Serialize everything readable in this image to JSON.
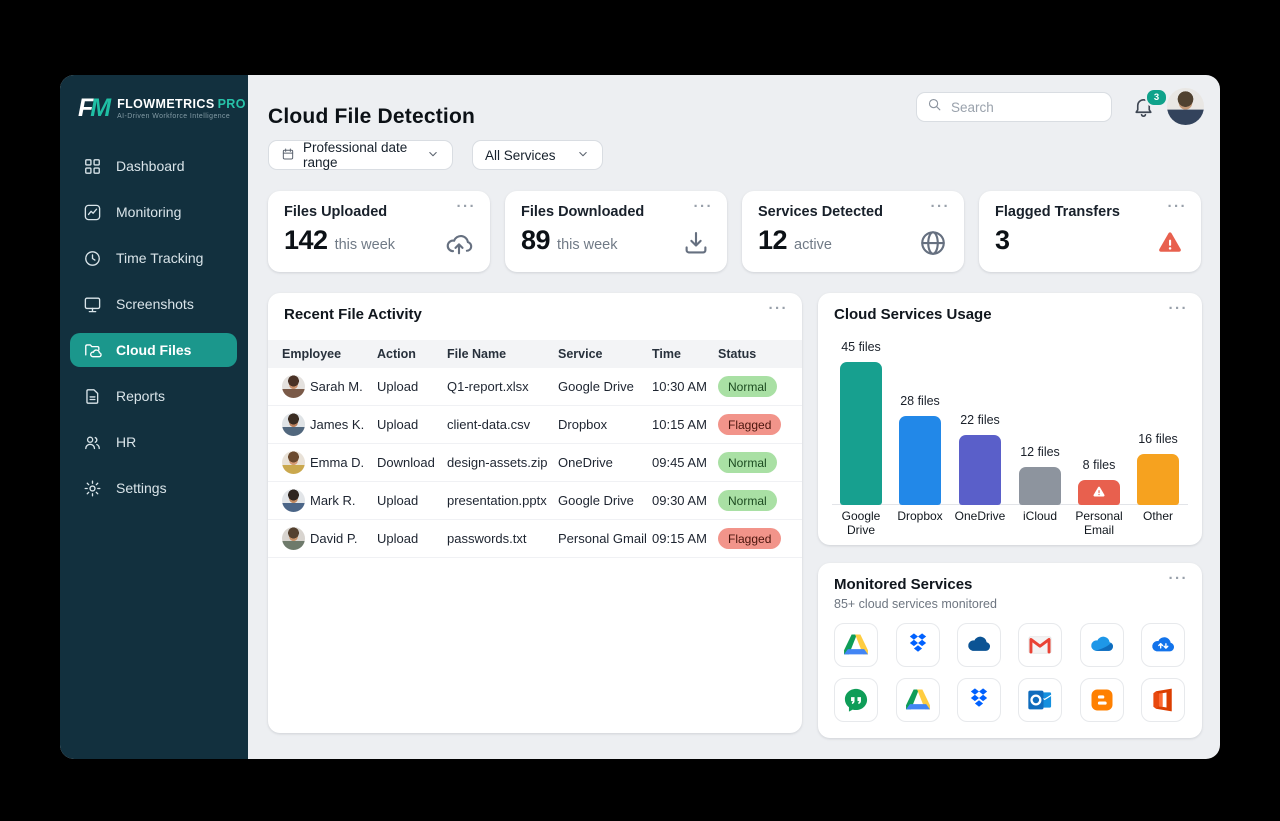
{
  "app": {
    "monogram_f": "F",
    "monogram_m": "M",
    "name": "FLOWMETRICS",
    "name_suffix": "PRO",
    "tagline": "AI-Driven Workforce Intelligence"
  },
  "colors": {
    "accent": "#1b978c",
    "sidebar_bg": "#12303e",
    "notification_badge": "#0fa28b",
    "warning": "#e8604e",
    "status_normal_bg": "#a9e0a4",
    "status_normal_text": "#1c4a20",
    "status_flagged_bg": "#f2948a",
    "status_flagged_text": "#4a150d"
  },
  "ui": {
    "menu_glyph": "···"
  },
  "sidebar": {
    "items": [
      {
        "label": "Dashboard",
        "icon": "grid-icon",
        "active": false
      },
      {
        "label": "Monitoring",
        "icon": "monitoring-icon",
        "active": false
      },
      {
        "label": "Time Tracking",
        "icon": "clock-icon",
        "active": false
      },
      {
        "label": "Screenshots",
        "icon": "monitor-icon",
        "active": false
      },
      {
        "label": "Cloud Files",
        "icon": "cloud-folder-icon",
        "active": true
      },
      {
        "label": "Reports",
        "icon": "document-icon",
        "active": false
      },
      {
        "label": "HR",
        "icon": "people-icon",
        "active": false
      },
      {
        "label": "Settings",
        "icon": "gear-icon",
        "active": false
      }
    ]
  },
  "header": {
    "title": "Cloud File Detection",
    "search_placeholder": "Search",
    "notification_count": "3"
  },
  "filters": {
    "date_range": "Professional date range",
    "service": "All Services"
  },
  "stats": [
    {
      "title": "Files Uploaded",
      "value": "142",
      "suffix": "this week",
      "icon": "cloud-upload-icon"
    },
    {
      "title": "Files Downloaded",
      "value": "89",
      "suffix": "this week",
      "icon": "download-icon"
    },
    {
      "title": "Services Detected",
      "value": "12",
      "suffix": "active",
      "icon": "globe-icon"
    },
    {
      "title": "Flagged Transfers",
      "value": "3",
      "suffix": "",
      "icon": "warning-icon"
    }
  ],
  "activity": {
    "title": "Recent File Activity",
    "columns": [
      "Employee",
      "Action",
      "File Name",
      "Service",
      "Time",
      "Status"
    ],
    "rows": [
      {
        "employee": "Sarah M.",
        "action": "Upload",
        "file": "Q1-report.xlsx",
        "service": "Google Drive",
        "time": "10:30 AM",
        "status": "Normal"
      },
      {
        "employee": "James K.",
        "action": "Upload",
        "file": "client-data.csv",
        "service": "Dropbox",
        "time": "10:15 AM",
        "status": "Flagged"
      },
      {
        "employee": "Emma D.",
        "action": "Download",
        "file": "design-assets.zip",
        "service": "OneDrive",
        "time": "09:45 AM",
        "status": "Normal"
      },
      {
        "employee": "Mark R.",
        "action": "Upload",
        "file": "presentation.pptx",
        "service": "Google Drive",
        "time": "09:30 AM",
        "status": "Normal"
      },
      {
        "employee": "David P.",
        "action": "Upload",
        "file": "passwords.txt",
        "service": "Personal Gmail",
        "time": "09:15 AM",
        "status": "Flagged"
      }
    ]
  },
  "chart_data": {
    "type": "bar",
    "title": "Cloud Services Usage",
    "categories": [
      "Google Drive",
      "Dropbox",
      "OneDrive",
      "iCloud",
      "Personal Email",
      "Other"
    ],
    "values": [
      45,
      28,
      22,
      12,
      8,
      16
    ],
    "value_labels": [
      "45 files",
      "28 files",
      "22 files",
      "12 files",
      "8 files",
      "16 files"
    ],
    "colors": [
      "#17a08f",
      "#2288e8",
      "#5a5fc9",
      "#8d949e",
      "#e8604e",
      "#f6a21f"
    ],
    "xlabel": "",
    "ylabel": "",
    "ylim": [
      0,
      45
    ],
    "grid": false,
    "legend": "none",
    "annotations": [
      {
        "target": "Personal Email",
        "icon": "warning-icon",
        "meaning": "flagged service"
      }
    ]
  },
  "monitored": {
    "title": "Monitored Services",
    "subtitle": "85+ cloud services monitored",
    "services": [
      {
        "name": "Google Drive",
        "icon": "google-drive-icon"
      },
      {
        "name": "Dropbox",
        "icon": "dropbox-icon"
      },
      {
        "name": "OneDrive",
        "icon": "onedrive-dark-icon"
      },
      {
        "name": "Gmail",
        "icon": "gmail-icon"
      },
      {
        "name": "OneDrive",
        "icon": "onedrive-light-icon"
      },
      {
        "name": "Cloud Transfer",
        "icon": "cloud-sync-icon"
      },
      {
        "name": "Google Hangouts",
        "icon": "hangouts-icon"
      },
      {
        "name": "Google Drive",
        "icon": "google-drive-icon"
      },
      {
        "name": "Dropbox",
        "icon": "dropbox-icon"
      },
      {
        "name": "Outlook",
        "icon": "outlook-icon"
      },
      {
        "name": "Blogger",
        "icon": "blogger-icon"
      },
      {
        "name": "Office",
        "icon": "office-icon"
      }
    ]
  }
}
